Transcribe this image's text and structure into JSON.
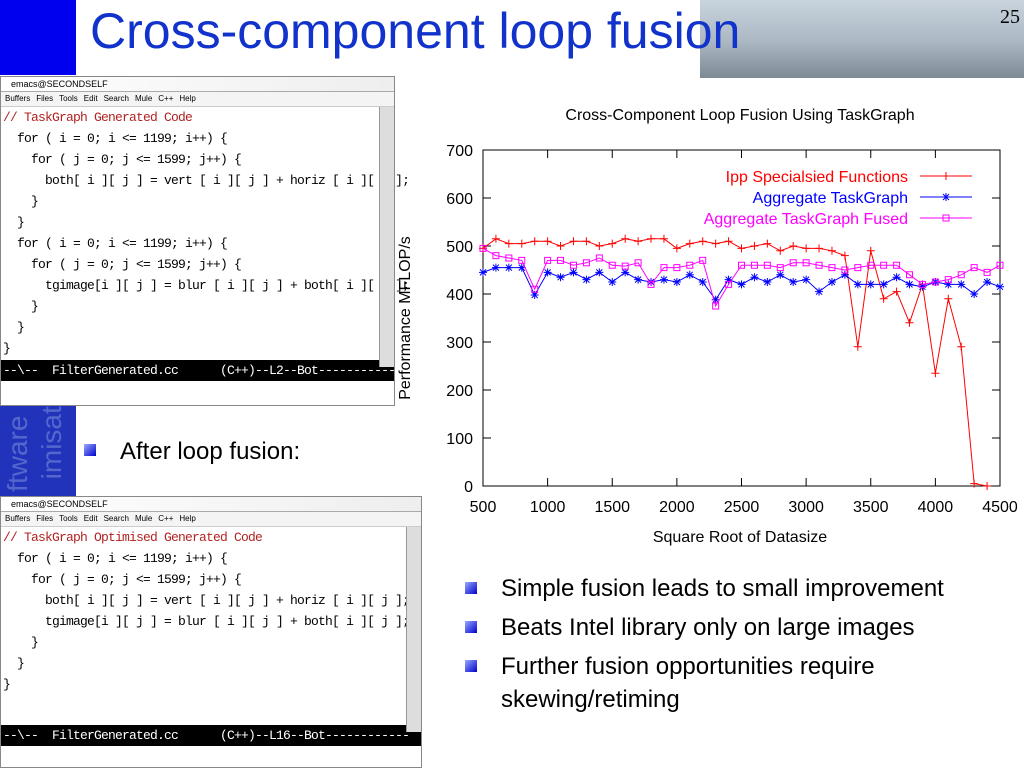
{
  "slide": {
    "title": "Cross-component loop fusion",
    "page_number": "25",
    "side_text": [
      "ftware I",
      "imisati"
    ],
    "left_bullet": "After loop fusion:",
    "bullets": [
      "Simple fusion leads to small improvement",
      "Beats Intel library only on large images",
      "Further fusion opportunities require skewing/retiming"
    ]
  },
  "editor1": {
    "titlebar": "emacs@SECONDSELF",
    "menu": [
      "Buffers",
      "Files",
      "Tools",
      "Edit",
      "Search",
      "Mule",
      "C++",
      "Help"
    ],
    "lines": [
      "// TaskGraph Generated Code",
      "  for ( i = 0; i <= 1199; i++) {",
      "    for ( j = 0; j <= 1599; j++) {",
      "      both[ i ][ j ] = vert [ i ][ j ] + horiz [ i ][ j ];",
      "    }",
      "  }",
      "  for ( i = 0; i <= 1199; i++) {",
      "    for ( j = 0; j <= 1599; j++) {",
      "      tgimage[i ][ j ] = blur [ i ][ j ] + both[ i ][ j ];",
      "    }",
      "  }",
      "}"
    ],
    "modeline": "--\\--  FilterGenerated.cc      (C++)--L2--Bot-------------"
  },
  "editor2": {
    "titlebar": "emacs@SECONDSELF",
    "menu": [
      "Buffers",
      "Files",
      "Tools",
      "Edit",
      "Search",
      "Mule",
      "C++",
      "Help"
    ],
    "lines": [
      "// TaskGraph Optimised Generated Code",
      "  for ( i = 0; i <= 1199; i++) {",
      "    for ( j = 0; j <= 1599; j++) {",
      "      both[ i ][ j ] = vert [ i ][ j ] + horiz [ i ][ j ];",
      "      tgimage[i ][ j ] = blur [ i ][ j ] + both[ i ][ j ];",
      "    }",
      "  }",
      "}"
    ],
    "modeline": "--\\--  FilterGenerated.cc      (C++)--L16--Bot------------"
  },
  "chart_data": {
    "type": "line",
    "title": "Cross-Component Loop Fusion Using TaskGraph",
    "x_label": "Square Root of Datasize",
    "y_label": "Performance MFLOP/s",
    "x": [
      500,
      600,
      700,
      800,
      900,
      1000,
      1100,
      1200,
      1300,
      1400,
      1500,
      1600,
      1700,
      1800,
      1900,
      2000,
      2100,
      2200,
      2300,
      2400,
      2500,
      2600,
      2700,
      2800,
      2900,
      3000,
      3100,
      3200,
      3300,
      3400,
      3500,
      3600,
      3700,
      3800,
      3900,
      4000,
      4100,
      4200,
      4300,
      4400,
      4500
    ],
    "series": [
      {
        "name": "Ipp Specialsied Functions",
        "color": "#ff0000",
        "marker": "plus",
        "values": [
          495,
          515,
          505,
          505,
          510,
          510,
          500,
          510,
          510,
          500,
          505,
          515,
          510,
          515,
          515,
          495,
          505,
          510,
          505,
          510,
          495,
          500,
          505,
          490,
          500,
          495,
          495,
          490,
          480,
          290,
          490,
          390,
          405,
          340,
          420,
          235,
          390,
          290,
          5,
          0,
          null
        ]
      },
      {
        "name": "Aggregate TaskGraph",
        "color": "#0000ff",
        "marker": "star",
        "values": [
          445,
          455,
          455,
          455,
          398,
          445,
          435,
          445,
          430,
          445,
          425,
          445,
          430,
          425,
          430,
          425,
          440,
          425,
          388,
          430,
          420,
          435,
          425,
          440,
          425,
          430,
          405,
          425,
          440,
          420,
          420,
          420,
          435,
          420,
          415,
          425,
          420,
          420,
          400,
          425,
          415
        ]
      },
      {
        "name": "Aggregate TaskGraph Fused",
        "color": "#ff00ff",
        "marker": "square",
        "values": [
          495,
          480,
          475,
          470,
          410,
          470,
          470,
          460,
          465,
          475,
          460,
          458,
          465,
          420,
          455,
          455,
          460,
          470,
          375,
          420,
          460,
          460,
          460,
          455,
          465,
          465,
          460,
          455,
          450,
          455,
          460,
          460,
          460,
          440,
          420,
          425,
          430,
          440,
          455,
          445,
          460
        ]
      }
    ],
    "xlim": [
      500,
      4500
    ],
    "xticks": [
      500,
      1000,
      1500,
      2000,
      2500,
      3000,
      3500,
      4000,
      4500
    ],
    "ylim": [
      0,
      700
    ],
    "yticks": [
      0,
      100,
      200,
      300,
      400,
      500,
      600,
      700
    ],
    "legend": "top-right"
  }
}
